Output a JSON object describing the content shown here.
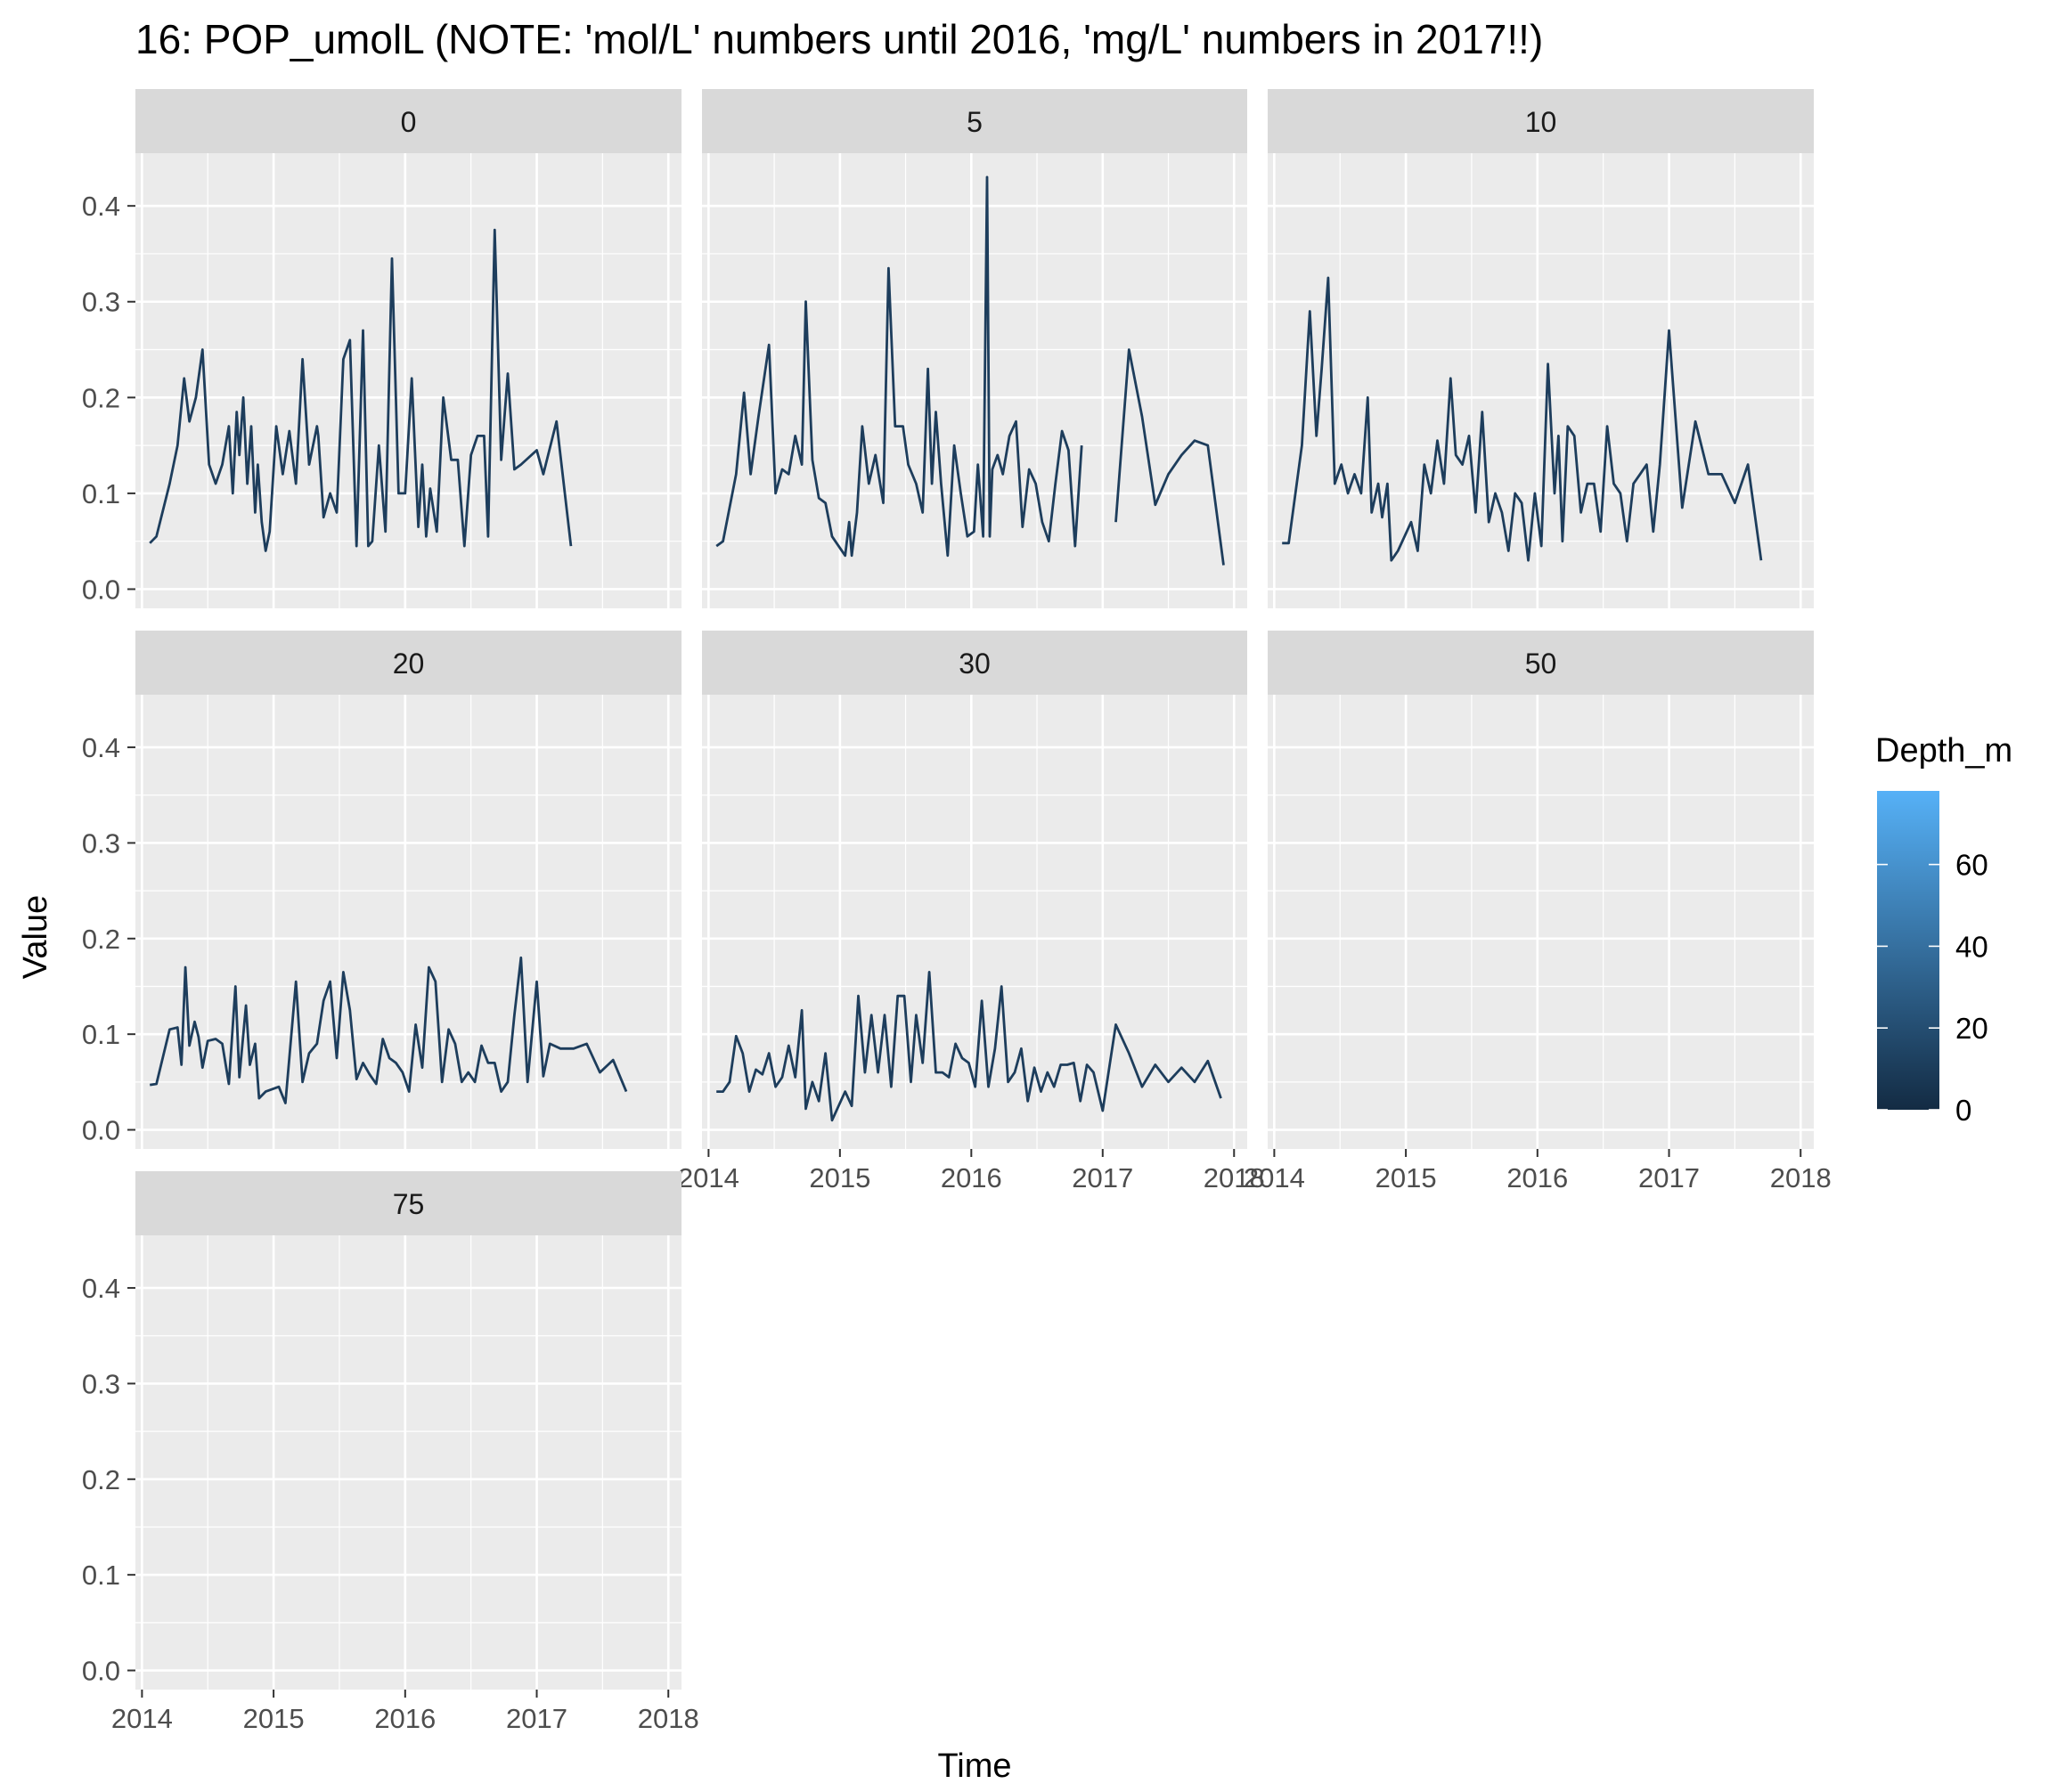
{
  "chart_data": {
    "type": "line",
    "layout": "faceted",
    "title": "16: POP_umolL (NOTE: 'mol/L' numbers until 2016, 'mg/L' numbers in 2017!!)",
    "xlabel": "Time",
    "ylabel": "Value",
    "x_ticks": [
      "2014",
      "2015",
      "2016",
      "2017",
      "2018"
    ],
    "y_ticks": [
      "0.0",
      "0.1",
      "0.2",
      "0.3",
      "0.4"
    ],
    "xlim": [
      2013.95,
      2018.1
    ],
    "ylim": [
      -0.02,
      0.455
    ],
    "grid": true,
    "line_color": "#1D3D5C",
    "legend": {
      "title": "Depth_m",
      "position": "right",
      "type": "colorbar",
      "low_color": "#132B43",
      "high_color": "#56B1F7",
      "range": [
        0,
        78
      ],
      "ticks": [
        0,
        20,
        40,
        60
      ]
    },
    "panels": [
      {
        "label": "0",
        "series": [
          {
            "x": [
              2014.06,
              2014.11,
              2014.21,
              2014.27,
              2014.32,
              2014.36,
              2014.41,
              2014.46,
              2014.51,
              2014.56,
              2014.61,
              2014.66,
              2014.69,
              2014.72,
              2014.74,
              2014.77,
              2014.8,
              2014.83,
              2014.86,
              2014.88,
              2014.91,
              2014.94,
              2014.97,
              2015.02,
              2015.07,
              2015.12,
              2015.17,
              2015.22,
              2015.27,
              2015.33,
              2015.34,
              2015.38,
              2015.43,
              2015.48,
              2015.53,
              2015.58,
              2015.63,
              2015.68,
              2015.72,
              2015.75,
              2015.8,
              2015.85,
              2015.9,
              2015.95,
              2016.0,
              2016.05,
              2016.1,
              2016.13,
              2016.16,
              2016.19,
              2016.24,
              2016.29,
              2016.35,
              2016.4,
              2016.45,
              2016.5,
              2016.55,
              2016.6,
              2016.63,
              2016.68,
              2016.73,
              2016.78,
              2016.83,
              2016.88,
              2017.0,
              2017.05,
              2017.15,
              2017.26,
              2017.34,
              2017.43,
              2017.54,
              2017.63,
              2017.73,
              2017.82,
              2017.91
            ],
            "y": [
              0.048,
              0.055,
              0.11,
              0.15,
              0.22,
              0.175,
              0.2,
              0.25,
              0.13,
              0.11,
              0.13,
              0.17,
              0.1,
              0.185,
              0.14,
              0.2,
              0.11,
              0.17,
              0.08,
              0.13,
              0.07,
              0.04,
              0.06,
              0.17,
              0.12,
              0.165,
              0.11,
              0.24,
              0.13,
              0.17,
              0.16,
              0.075,
              0.1,
              0.08,
              0.24,
              0.26,
              0.045,
              0.27,
              0.045,
              0.05,
              0.15,
              0.06,
              0.345,
              0.1,
              0.1,
              0.22,
              0.065,
              0.13,
              0.055,
              0.105,
              0.06,
              0.2,
              0.135,
              0.135,
              0.045,
              0.14,
              0.16,
              0.16,
              0.055,
              0.375,
              0.135,
              0.225,
              0.125,
              0.13,
              0.145,
              0.12,
              0.175,
              0.045,
              null,
              null,
              null,
              null,
              null,
              null,
              null
            ]
          }
        ]
      },
      {
        "label": "5",
        "series": [
          {
            "x": [
              2014.06,
              2014.11,
              2014.21,
              2014.27,
              2014.32,
              2014.38,
              2014.46,
              2014.51,
              2014.56,
              2014.61,
              2014.66,
              2014.71,
              2014.74,
              2014.79,
              2014.84,
              2014.89,
              2014.94,
              2015.04,
              2015.07,
              2015.09,
              2015.13,
              2015.17,
              2015.22,
              2015.27,
              2015.33,
              2015.37,
              2015.42,
              2015.48,
              2015.52,
              2015.58,
              2015.63,
              2015.67,
              2015.7,
              2015.73,
              2015.77,
              2015.82,
              2015.87,
              2015.92,
              2015.97,
              2016.02,
              2016.05,
              2016.09,
              2016.12,
              2016.14,
              2016.16,
              2016.2,
              2016.24,
              2016.29,
              2016.34,
              2016.39,
              2016.44,
              2016.49,
              2016.54,
              2016.59,
              2016.64,
              2016.69,
              2016.74,
              2016.79,
              2016.84,
              2016.89,
              2016.94
            ],
            "y": [
              0.045,
              0.05,
              0.12,
              0.205,
              0.12,
              0.18,
              0.255,
              0.1,
              0.125,
              0.12,
              0.16,
              0.13,
              0.3,
              0.135,
              0.095,
              0.09,
              0.055,
              0.035,
              0.07,
              0.035,
              0.08,
              0.17,
              0.11,
              0.14,
              0.09,
              0.335,
              0.17,
              0.17,
              0.13,
              0.11,
              0.08,
              0.23,
              0.11,
              0.185,
              0.11,
              0.035,
              0.15,
              0.1,
              0.055,
              0.06,
              0.13,
              0.055,
              0.43,
              0.055,
              0.125,
              0.14,
              0.12,
              0.16,
              0.175,
              0.065,
              0.125,
              0.11,
              0.07,
              0.05,
              0.11,
              0.165,
              0.145,
              0.045,
              0.15,
              null,
              null
            ]
          },
          {
            "x": [
              2017.1,
              2017.2,
              2017.3,
              2017.4,
              2017.5,
              2017.6,
              2017.7,
              2017.8,
              2017.92
            ],
            "y": [
              0.07,
              0.25,
              0.18,
              0.088,
              0.12,
              0.14,
              0.155,
              0.15,
              0.025
            ]
          }
        ]
      },
      {
        "label": "10",
        "series": [
          {
            "x": [
              2014.06,
              2014.11,
              2014.21,
              2014.27,
              2014.32,
              2014.36,
              2014.41,
              2014.46,
              2014.51,
              2014.56,
              2014.61,
              2014.66,
              2014.71,
              2014.74,
              2014.79,
              2014.82,
              2014.86,
              2014.89,
              2014.94,
              2015.04,
              2015.09,
              2015.14,
              2015.19,
              2015.24,
              2015.29,
              2015.34,
              2015.38,
              2015.43,
              2015.48,
              2015.53,
              2015.58,
              2015.63,
              2015.68,
              2015.73,
              2015.78,
              2015.83,
              2015.88,
              2015.93,
              2015.98,
              2016.03,
              2016.08,
              2016.13,
              2016.16,
              2016.19,
              2016.23,
              2016.28,
              2016.33,
              2016.38,
              2016.43,
              2016.48,
              2016.53,
              2016.58,
              2016.63,
              2016.68,
              2016.73,
              2016.78,
              2016.83,
              2016.88,
              2016.93,
              2017.0,
              2017.1,
              2017.2,
              2017.3,
              2017.4,
              2017.5,
              2017.6,
              2017.7,
              2017.8,
              2017.9
            ],
            "y": [
              0.048,
              0.048,
              0.15,
              0.29,
              0.16,
              0.23,
              0.325,
              0.11,
              0.13,
              0.1,
              0.12,
              0.1,
              0.2,
              0.08,
              0.11,
              0.075,
              0.11,
              0.03,
              0.04,
              0.07,
              0.04,
              0.13,
              0.1,
              0.155,
              0.11,
              0.22,
              0.14,
              0.13,
              0.16,
              0.08,
              0.185,
              0.07,
              0.1,
              0.08,
              0.04,
              0.1,
              0.09,
              0.03,
              0.1,
              0.045,
              0.235,
              0.1,
              0.16,
              0.05,
              0.17,
              0.16,
              0.08,
              0.11,
              0.11,
              0.06,
              0.17,
              0.11,
              0.1,
              0.05,
              0.11,
              0.12,
              0.13,
              0.06,
              0.13,
              0.27,
              0.085,
              0.175,
              0.12,
              0.12,
              0.09,
              0.13,
              0.03,
              null,
              null
            ]
          }
        ]
      },
      {
        "label": "20",
        "series": [
          {
            "x": [
              2014.06,
              2014.11,
              2014.21,
              2014.27,
              2014.3,
              2014.33,
              2014.36,
              2014.4,
              2014.43,
              2014.46,
              2014.5,
              2014.56,
              2014.61,
              2014.66,
              2014.71,
              2014.74,
              2014.79,
              2014.82,
              2014.86,
              2014.89,
              2014.94,
              2015.04,
              2015.09,
              2015.17,
              2015.22,
              2015.27,
              2015.33,
              2015.38,
              2015.43,
              2015.48,
              2015.53,
              2015.58,
              2015.63,
              2015.68,
              2015.73,
              2015.78,
              2015.83,
              2015.88,
              2015.93,
              2015.98,
              2016.03,
              2016.08,
              2016.13,
              2016.18,
              2016.23,
              2016.28,
              2016.33,
              2016.38,
              2016.43,
              2016.48,
              2016.53,
              2016.58,
              2016.63,
              2016.68,
              2016.73,
              2016.78,
              2016.83,
              2016.88,
              2016.93,
              2017.0,
              2017.05,
              2017.1,
              2017.18,
              2017.28,
              2017.38,
              2017.48,
              2017.58,
              2017.68,
              2017.78,
              2017.88
            ],
            "y": [
              0.047,
              0.048,
              0.105,
              0.107,
              0.068,
              0.17,
              0.088,
              0.113,
              0.097,
              0.065,
              0.093,
              0.095,
              0.09,
              0.048,
              0.15,
              0.055,
              0.13,
              0.068,
              0.09,
              0.033,
              0.04,
              0.045,
              0.028,
              0.155,
              0.05,
              0.08,
              0.09,
              0.135,
              0.155,
              0.075,
              0.165,
              0.125,
              0.053,
              0.07,
              0.058,
              0.048,
              0.095,
              0.075,
              0.07,
              0.06,
              0.04,
              0.11,
              0.065,
              0.17,
              0.155,
              0.05,
              0.105,
              0.09,
              0.05,
              0.06,
              0.05,
              0.088,
              0.07,
              0.07,
              0.04,
              0.05,
              0.12,
              0.18,
              0.05,
              0.155,
              0.056,
              0.09,
              0.085,
              0.085,
              0.09,
              0.06,
              0.073,
              0.04,
              null,
              null
            ]
          }
        ]
      },
      {
        "label": "30",
        "series": [
          {
            "x": [
              2014.06,
              2014.11,
              2014.16,
              2014.21,
              2014.26,
              2014.31,
              2014.36,
              2014.41,
              2014.46,
              2014.51,
              2014.56,
              2014.61,
              2014.66,
              2014.71,
              2014.74,
              2014.79,
              2014.84,
              2014.89,
              2014.94,
              2015.04,
              2015.09,
              2015.14,
              2015.19,
              2015.24,
              2015.29,
              2015.34,
              2015.39,
              2015.44,
              2015.49,
              2015.54,
              2015.58,
              2015.63,
              2015.68,
              2015.73,
              2015.78,
              2015.83,
              2015.88,
              2015.93,
              2015.98,
              2016.03,
              2016.08,
              2016.13,
              2016.18,
              2016.23,
              2016.28,
              2016.33,
              2016.38,
              2016.43,
              2016.48,
              2016.53,
              2016.58,
              2016.63,
              2016.68,
              2016.73,
              2016.78,
              2016.83,
              2016.88,
              2016.93,
              2017.0,
              2017.1,
              2017.2,
              2017.3,
              2017.4,
              2017.5,
              2017.6,
              2017.7,
              2017.8,
              2017.9
            ],
            "y": [
              0.04,
              0.04,
              0.05,
              0.098,
              0.08,
              0.04,
              0.063,
              0.058,
              0.08,
              0.045,
              0.055,
              0.088,
              0.055,
              0.125,
              0.022,
              0.05,
              0.03,
              0.08,
              0.01,
              0.04,
              0.025,
              0.14,
              0.06,
              0.12,
              0.06,
              0.12,
              0.045,
              0.14,
              0.14,
              0.05,
              0.12,
              0.07,
              0.165,
              0.06,
              0.06,
              0.055,
              0.09,
              0.075,
              0.07,
              0.045,
              0.135,
              0.045,
              0.085,
              0.15,
              0.05,
              0.06,
              0.085,
              0.03,
              0.065,
              0.04,
              0.06,
              0.045,
              0.068,
              0.068,
              0.07,
              0.03,
              0.068,
              0.06,
              0.02,
              0.11,
              0.08,
              0.045,
              0.068,
              0.05,
              0.065,
              0.05,
              0.072,
              0.033
            ]
          }
        ]
      },
      {
        "label": "50",
        "series": []
      },
      {
        "label": "75",
        "series": []
      }
    ]
  }
}
